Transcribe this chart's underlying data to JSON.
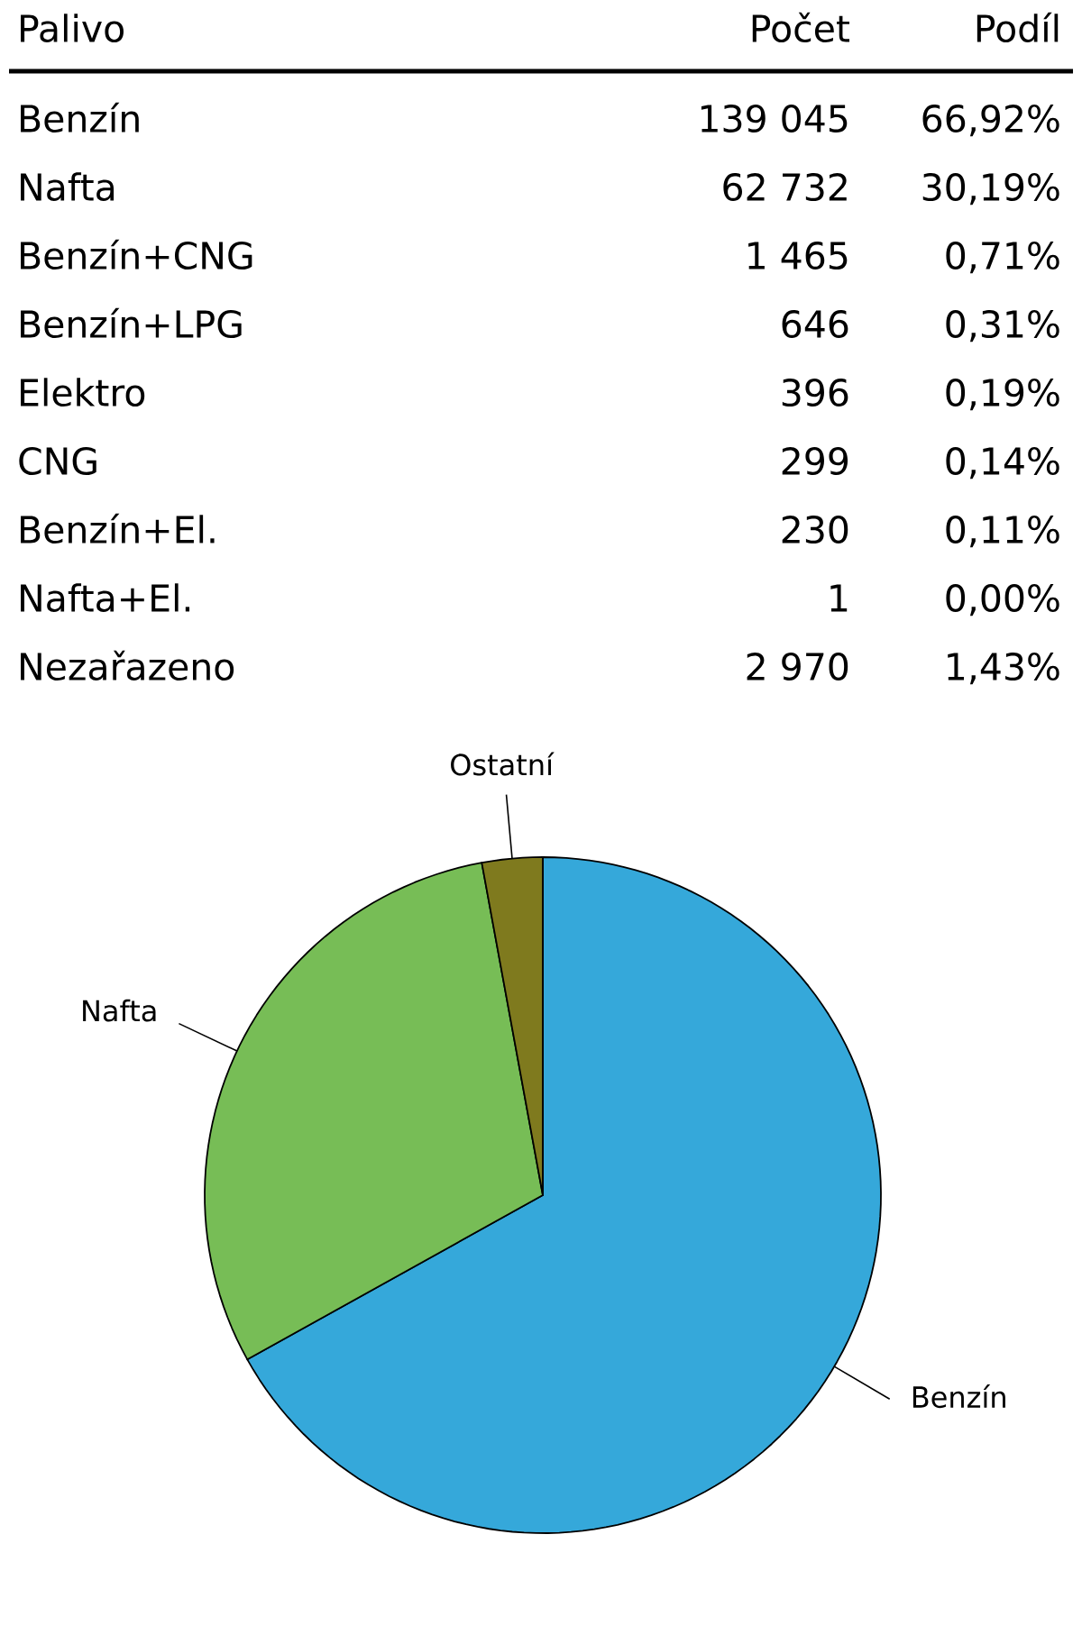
{
  "chart_data": [
    {
      "type": "other",
      "xlabel": "Palivo",
      "categories": [
        "Benzín",
        "Nafta",
        "Benzín+CNG",
        "Benzín+LPG",
        "Elektro",
        "CNG",
        "Benzín+El.",
        "Nafta+El.",
        "Nezařazeno"
      ],
      "annotations": [
        "Počet",
        "Podíl",
        "139 045",
        "66,92%",
        "62 732",
        "30,19%",
        "1 465",
        "0,71%",
        "646",
        "0,31%",
        "396",
        "0,19%",
        "299",
        "0,14%",
        "230",
        "0,11%",
        "1",
        "0,00%",
        "2 970",
        "1,43%"
      ]
    },
    {
      "type": "pie",
      "categories": [
        "Benzín",
        "Nafta",
        "Ostatní"
      ],
      "values": [
        66.92,
        30.19,
        2.89
      ],
      "colors": [
        "#35a8da",
        "#77bd56",
        "#7f7a1e"
      ]
    }
  ]
}
